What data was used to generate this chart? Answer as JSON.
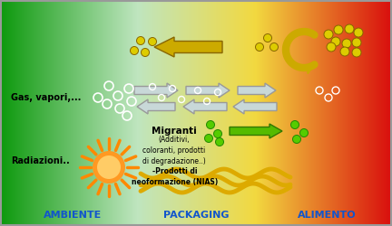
{
  "label_ambiente": "AMBIENTE",
  "label_packaging": "PACKAGING",
  "label_alimento": "ALIMENTO",
  "label_gas": "Gas, vapori,...",
  "label_radiazioni": "Radiazioni..",
  "label_migranti": "Migranti",
  "label_migranti_sub": "(Additivi,\ncoloranti, prodotti\ndi degradazione..)",
  "label_prodotti": "-Prodotti di\nneoformazione (NIAS)",
  "text_color_bottom": "#1155cc",
  "arrow_color_yellow": "#ccaa00",
  "arrow_color_green": "#55bb00",
  "dot_color_yellow": "#ddcc00",
  "dot_color_green": "#55cc00",
  "dot_color_white_outline": "#aaaaaa",
  "sun_body": "#ff9933",
  "sun_ray": "#ff7700",
  "wave_color": "#ddaa00",
  "arrow_gray_face": "#c8d8d8",
  "arrow_gray_edge": "#999999"
}
